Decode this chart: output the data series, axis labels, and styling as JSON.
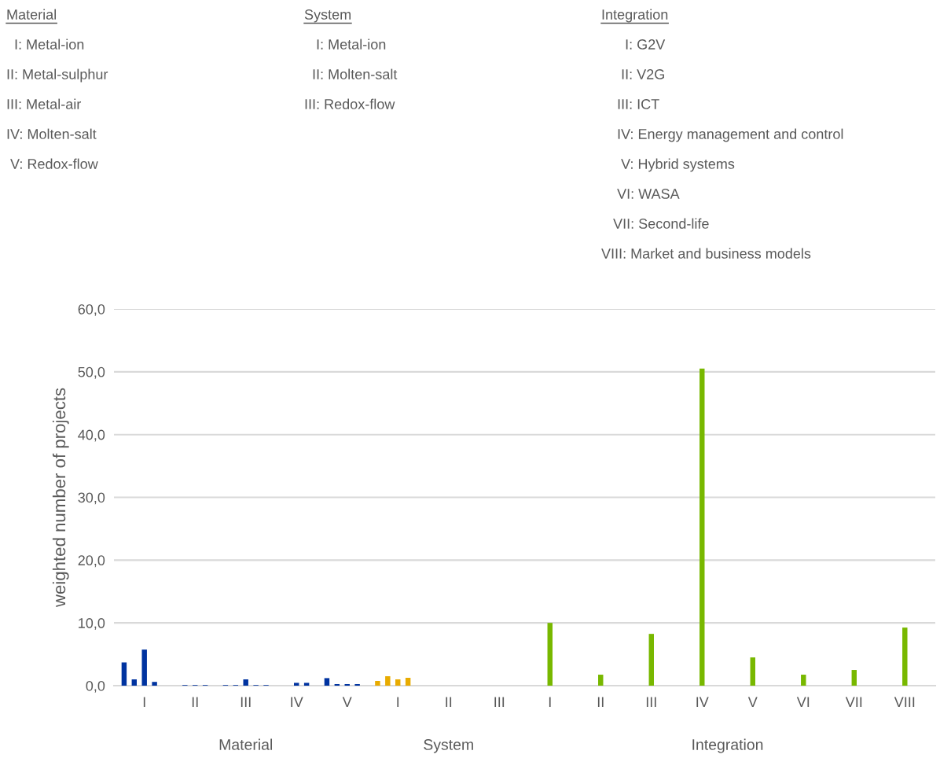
{
  "chart_data": {
    "type": "bar",
    "ylabel": "weighted number of projects",
    "categories": [
      "I",
      "II",
      "III",
      "IV",
      "V",
      "I",
      "II",
      "III",
      "I",
      "II",
      "III",
      "IV",
      "V",
      "VI",
      "VII",
      "VIII"
    ],
    "series": [
      {
        "colors": [
          "#0033a0",
          "#0033a0",
          "#0033a0",
          "#0033a0",
          "#0033a0",
          "#e8ab00",
          "#e8ab00",
          "#e8ab00",
          "#78b800",
          "#78b800",
          "#78b800",
          "#78b800",
          "#78b800",
          "#78b800",
          "#78b800",
          "#78b800"
        ],
        "values": [
          3.7,
          null,
          0.1,
          null,
          1.2,
          0.75,
          null,
          null,
          null,
          null,
          null,
          null,
          null,
          null,
          null,
          null
        ]
      },
      {
        "colors": [
          "#0033a0",
          "#0033a0",
          "#0033a0",
          "#0033a0",
          "#0033a0",
          "#e8ab00",
          "#e8ab00",
          "#e8ab00",
          "#78b800",
          "#78b800",
          "#78b800",
          "#78b800",
          "#78b800",
          "#78b800",
          "#78b800",
          "#78b800"
        ],
        "values": [
          1.0,
          0.1,
          0.1,
          null,
          0.25,
          1.5,
          null,
          null,
          null,
          null,
          null,
          null,
          null,
          null,
          null,
          null
        ]
      },
      {
        "colors": [
          "#0033a0",
          "#0033a0",
          "#0033a0",
          "#0033a0",
          "#0033a0",
          "#e8ab00",
          "#e8ab00",
          "#e8ab00",
          "#78b800",
          "#78b800",
          "#78b800",
          "#78b800",
          "#78b800",
          "#78b800",
          "#78b800",
          "#78b800"
        ],
        "values": [
          5.75,
          0.1,
          1.0,
          0.45,
          0.25,
          1.0,
          null,
          null,
          10.0,
          1.75,
          8.25,
          50.5,
          4.5,
          1.75,
          2.5,
          9.25
        ]
      },
      {
        "colors": [
          "#0033a0",
          "#0033a0",
          "#0033a0",
          "#0033a0",
          "#0033a0",
          "#e8ab00",
          "#e8ab00",
          "#e8ab00",
          "#78b800",
          "#78b800",
          "#78b800",
          "#78b800",
          "#78b800",
          "#78b800",
          "#78b800",
          "#78b800"
        ],
        "values": [
          0.6,
          0.1,
          0.1,
          0.45,
          0.25,
          1.25,
          null,
          null,
          null,
          null,
          null,
          null,
          null,
          null,
          null,
          null
        ]
      },
      {
        "colors": [
          "#0033a0",
          "#0033a0",
          "#0033a0",
          "#0033a0",
          "#0033a0",
          "#e8ab00",
          "#e8ab00",
          "#e8ab00",
          "#78b800",
          "#78b800",
          "#78b800",
          "#78b800",
          "#78b800",
          "#78b800",
          "#78b800",
          "#78b800"
        ],
        "values": [
          null,
          null,
          0.1,
          null,
          null,
          null,
          null,
          null,
          null,
          null,
          null,
          null,
          null,
          null,
          null,
          null
        ]
      }
    ],
    "ylim": [
      0,
      60
    ],
    "yticks": [
      {
        "value": 0,
        "label": "0,0"
      },
      {
        "value": 10,
        "label": "10,0"
      },
      {
        "value": 20,
        "label": "20,0"
      },
      {
        "value": 30,
        "label": "30,0"
      },
      {
        "value": 40,
        "label": "40,0"
      },
      {
        "value": 50,
        "label": "50,0"
      },
      {
        "value": 60,
        "label": "60,0"
      }
    ],
    "grid": "y",
    "legend": false,
    "annotations": [
      "Material\n  I: Metal-ion\nII: Metal-sulphur\nIII: Metal-air\nIV: Molten-salt\n V: Redox-flow",
      "System\n   I: Metal-ion\n  II: Molten-salt\nIII: Redox-flow",
      "Integration\n      I: G2V\n     II: V2G\n    III: ICT\n    IV: Energy management and control\n     V: Hybrid systems\n    VI: WASA\n   VII: Second-life\nVIII: Market and business models",
      "Material",
      "System",
      "Integration"
    ]
  }
}
